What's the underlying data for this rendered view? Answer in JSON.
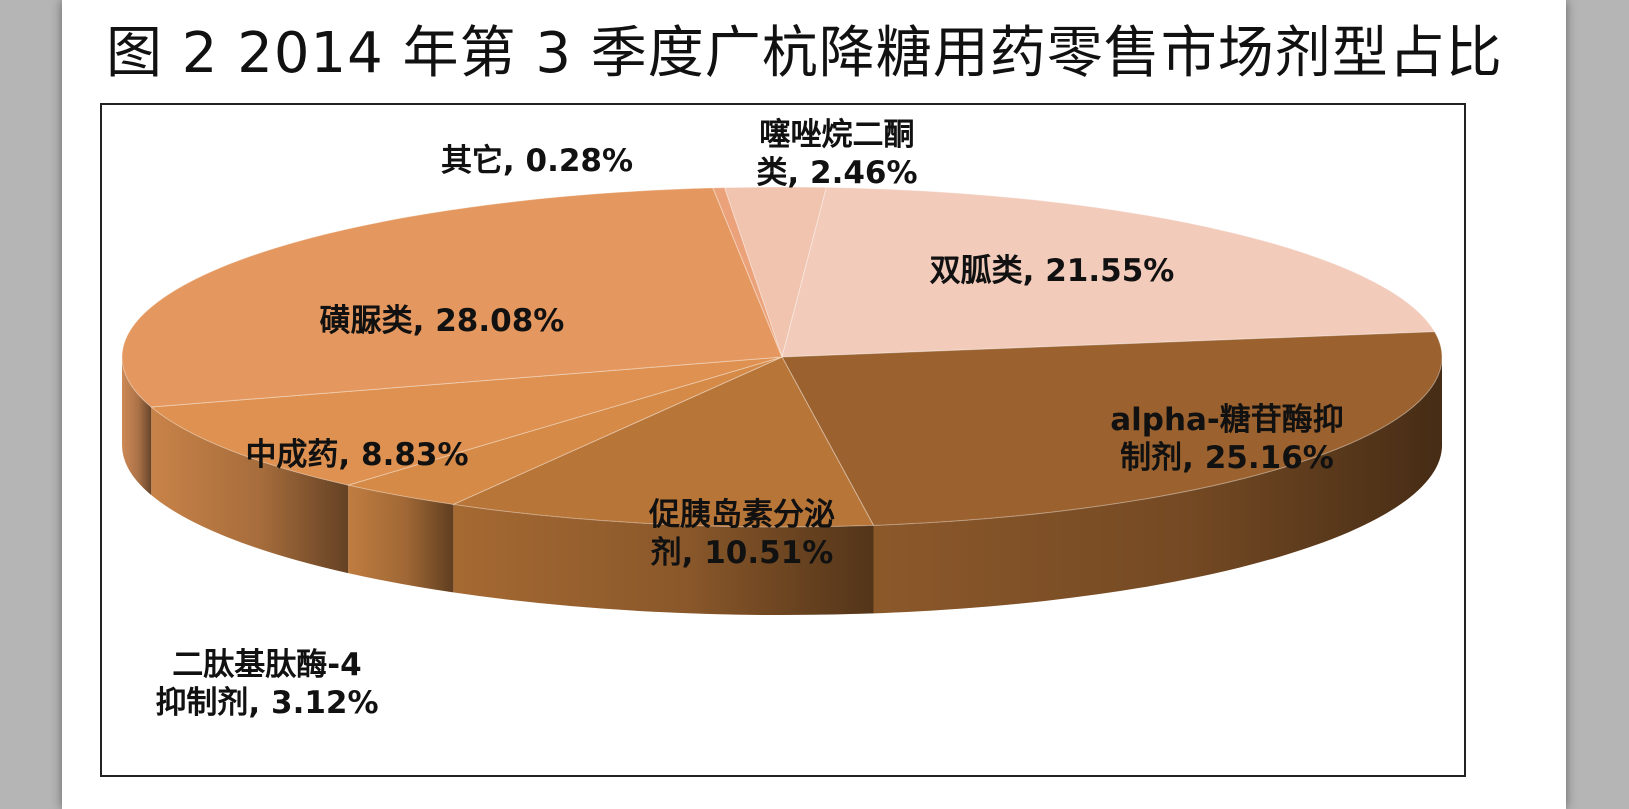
{
  "figure": {
    "title": "图 2   2014 年第 3 季度广杭降糖用药零售市场剂型占比"
  },
  "chart_data": {
    "type": "pie",
    "title": "",
    "legend": "none",
    "slices": [
      {
        "name": "噻唑烷二酮类",
        "value": 2.46,
        "label_lines": [
          "噻唑烷二酮",
          "类, 2.46%"
        ],
        "color": "#f0c4ae"
      },
      {
        "name": "双胍类",
        "value": 21.55,
        "label_lines": [
          "双胍类, 21.55%"
        ],
        "color": "#f2cbbb"
      },
      {
        "name": "alpha-糖苷酶抑制剂",
        "value": 25.16,
        "label_lines": [
          "alpha-糖苷酶抑",
          "制剂, 25.16%"
        ],
        "color": "#9b622f"
      },
      {
        "name": "促胰岛素分泌剂",
        "value": 10.51,
        "label_lines": [
          "促胰岛素分泌",
          "剂, 10.51%"
        ],
        "color": "#b87538"
      },
      {
        "name": "二肽基肽酶-4抑制剂",
        "value": 3.12,
        "label_lines": [
          "二肽基肽酶-4",
          "抑制剂, 3.12%"
        ],
        "color": "#d58a47"
      },
      {
        "name": "中成药",
        "value": 8.83,
        "label_lines": [
          "中成药, 8.83%"
        ],
        "color": "#de9150"
      },
      {
        "name": "磺脲类",
        "value": 28.08,
        "label_lines": [
          "磺脲类, 28.08%"
        ],
        "color": "#e4985f"
      },
      {
        "name": "其它",
        "value": 0.28,
        "label_lines": [
          "其它, 0.28%"
        ],
        "color": "#eba27a"
      }
    ]
  }
}
